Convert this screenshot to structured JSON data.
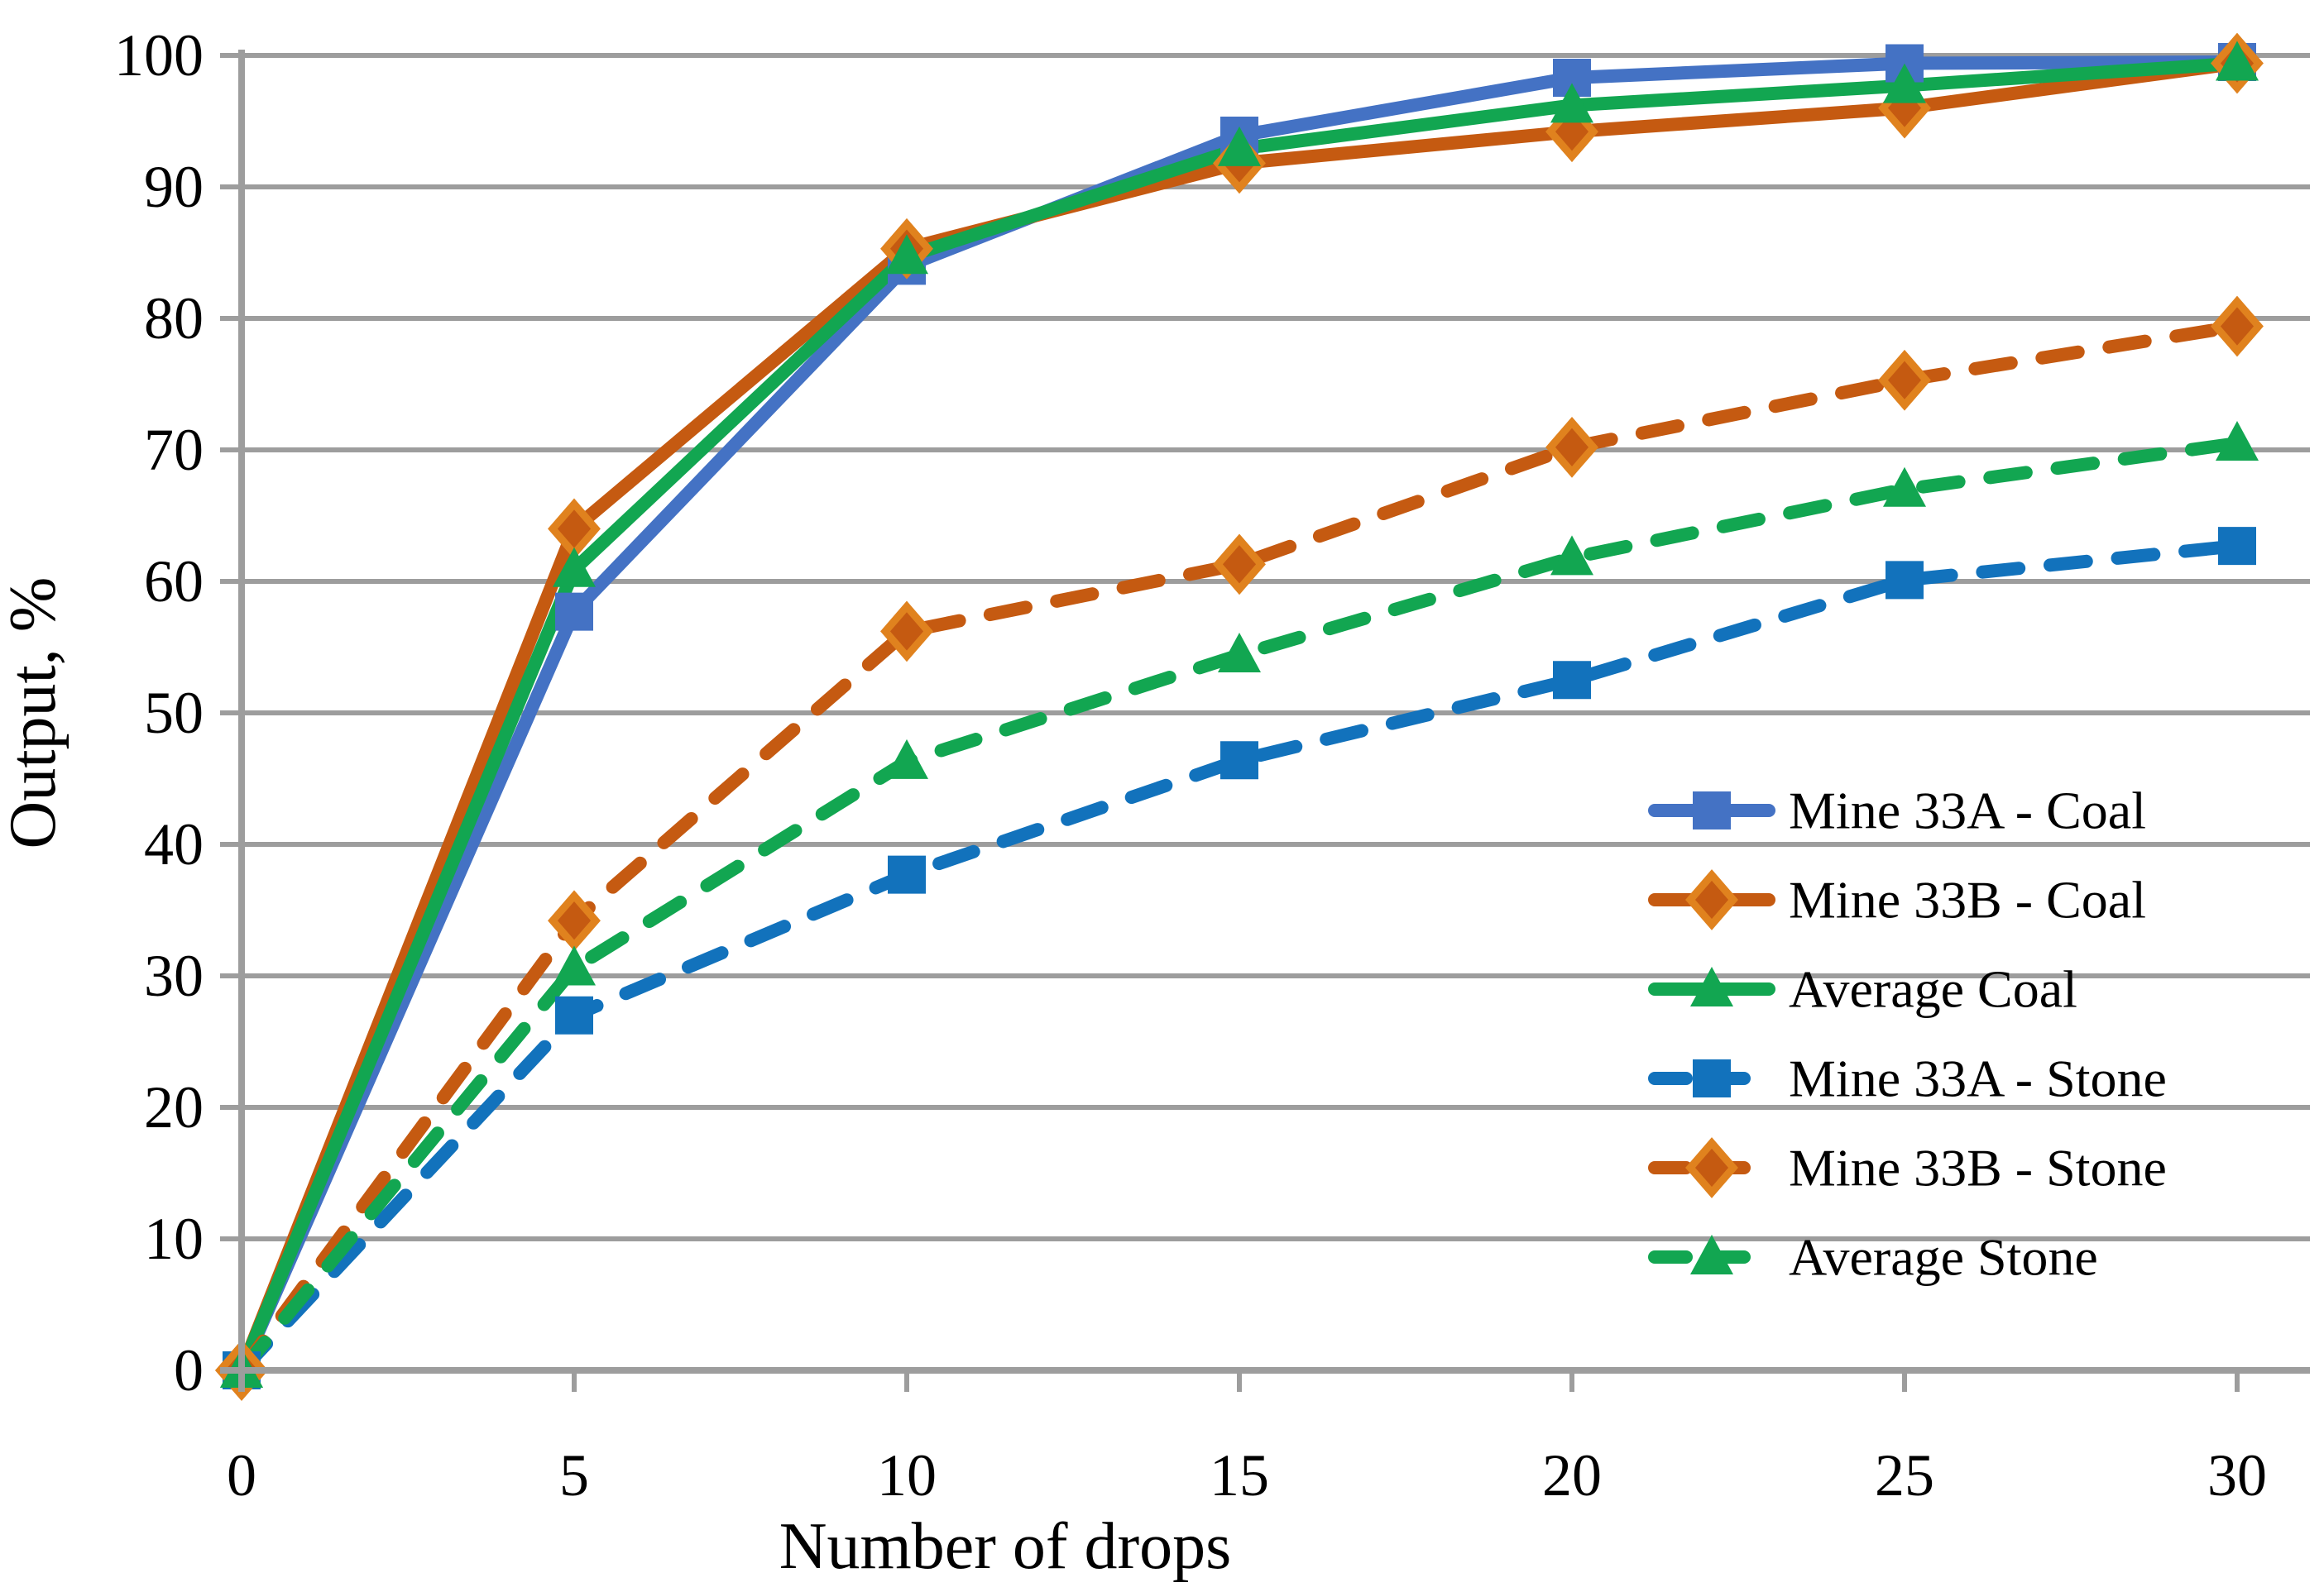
{
  "chart_data": {
    "type": "line",
    "title": "",
    "xlabel": "Number of drops",
    "ylabel": "Output, %",
    "x": [
      0,
      5,
      10,
      15,
      20,
      25,
      30
    ],
    "xticks": [
      0,
      5,
      10,
      15,
      20,
      25,
      30
    ],
    "yticks": [
      0,
      10,
      20,
      30,
      40,
      50,
      60,
      70,
      80,
      90,
      100
    ],
    "xlim": [
      0,
      30
    ],
    "ylim": [
      0,
      100
    ],
    "grid": "horizontal",
    "legend_position": "middle-right-inside",
    "series": [
      {
        "name": "Mine 33A - Coal",
        "color": "#4472C4",
        "marker": "square",
        "dashed": false,
        "values": [
          0,
          57.7,
          84.0,
          93.9,
          98.3,
          99.4,
          99.5
        ]
      },
      {
        "name": "Mine 33B - Coal",
        "color": "#C55A11",
        "marker": "diamond",
        "dashed": false,
        "values": [
          0,
          64.0,
          85.3,
          91.8,
          94.2,
          96.0,
          99.4
        ]
      },
      {
        "name": "Average Coal",
        "color": "#12A651",
        "marker": "triangle",
        "dashed": false,
        "values": [
          0,
          60.9,
          84.7,
          92.9,
          96.2,
          97.7,
          99.4
        ]
      },
      {
        "name": "Mine 33A - Stone",
        "color": "#1272BC",
        "marker": "square",
        "dashed": true,
        "values": [
          0,
          27.0,
          37.7,
          46.4,
          52.5,
          60.1,
          62.7
        ]
      },
      {
        "name": "Mine 33B - Stone",
        "color": "#C55A11",
        "marker": "diamond",
        "dashed": true,
        "values": [
          0,
          34.2,
          56.2,
          61.3,
          70.2,
          75.3,
          79.4
        ]
      },
      {
        "name": "Average Stone",
        "color": "#12A651",
        "marker": "triangle",
        "dashed": true,
        "values": [
          0,
          30.6,
          46.3,
          54.4,
          61.8,
          67.0,
          70.5
        ]
      }
    ],
    "colors": {
      "gridline": "#9D9D9D",
      "axis": "#9D9D9D",
      "diamond_rim": "#E0821E",
      "text": "#000000"
    }
  }
}
